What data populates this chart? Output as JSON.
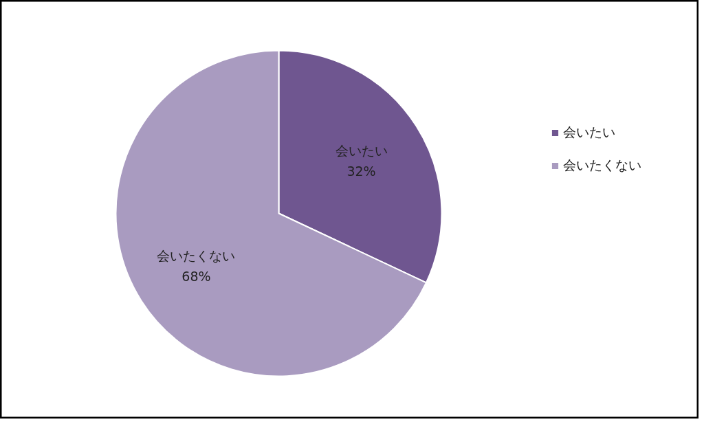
{
  "chart_data": {
    "type": "pie",
    "categories": [
      "会いたい",
      "会いたくない"
    ],
    "values": [
      32,
      68
    ],
    "colors": [
      "#6f5690",
      "#a99bc0"
    ],
    "value_labels": [
      "32%",
      "68%"
    ],
    "legend": "right"
  }
}
